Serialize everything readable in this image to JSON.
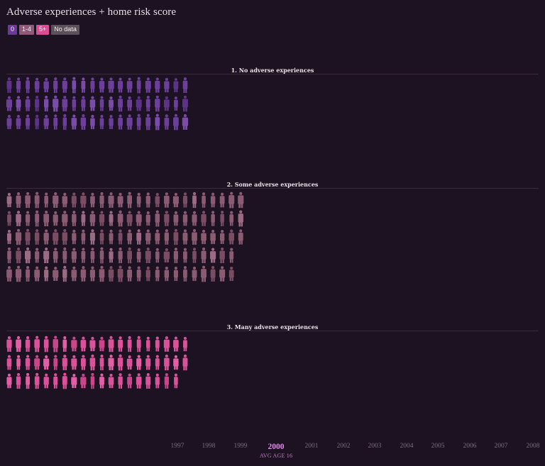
{
  "title": "Adverse experiences + home risk score",
  "legend": [
    {
      "label": "0",
      "color": "#6b3a96"
    },
    {
      "label": "1-4",
      "color": "#8e5a77"
    },
    {
      "label": "5+",
      "color": "#da4d94"
    },
    {
      "label": "No data",
      "color": "#5d5159"
    }
  ],
  "sections": [
    {
      "title": "1. No adverse experiences",
      "group": "0",
      "color": "#6c3f9a",
      "rows": [
        20,
        20,
        20
      ]
    },
    {
      "title": "2. Some adverse experiences",
      "group": "1-4",
      "color": "#8a5b73",
      "rows": [
        26,
        26,
        26,
        25,
        25
      ]
    },
    {
      "title": "3. Many adverse experiences",
      "group": "5+",
      "color": "#d9529a",
      "rows": [
        20,
        20,
        19
      ]
    }
  ],
  "axis": {
    "years": [
      "1997",
      "1998",
      "1999",
      "2000",
      "2001",
      "2002",
      "2003",
      "2004",
      "2005",
      "2006",
      "2007",
      "2008"
    ],
    "selected_year": "2000",
    "selected_subtitle": "AVG AGE 16"
  },
  "chart_data": {
    "type": "pictogram",
    "title": "Adverse experiences + home risk score",
    "legend": [
      "0",
      "1-4",
      "5+",
      "No data"
    ],
    "groups": [
      "1. No adverse experiences",
      "2. Some adverse experiences",
      "3. Many adverse experiences"
    ],
    "row_counts": [
      [
        20,
        20,
        20
      ],
      [
        26,
        26,
        26,
        25,
        25
      ],
      [
        20,
        20,
        19
      ]
    ],
    "x_ticks": [
      "1997",
      "1998",
      "1999",
      "2000",
      "2001",
      "2002",
      "2003",
      "2004",
      "2005",
      "2006",
      "2007",
      "2008"
    ],
    "selected_x": "2000"
  }
}
